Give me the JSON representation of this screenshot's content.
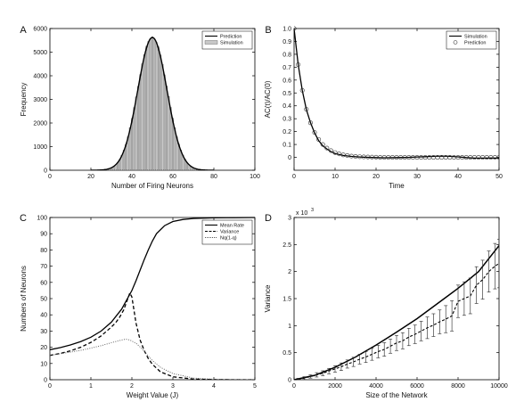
{
  "chart_data": [
    {
      "panel_label": "A",
      "type": "bar",
      "xlabel": "Number of Firing Neurons",
      "ylabel": "Frequency",
      "xlim": [
        0,
        100
      ],
      "ylim": [
        0,
        6000
      ],
      "xticks": [
        0,
        20,
        40,
        60,
        80,
        100
      ],
      "yticks": [
        0,
        1000,
        2000,
        3000,
        4000,
        5000,
        6000
      ],
      "legend": {
        "position": "top-right",
        "entries": [
          "Prediction",
          "Simulation"
        ]
      },
      "series": [
        {
          "name": "Prediction",
          "kind": "line",
          "mean": 50,
          "std": 7.1,
          "peak": 5620
        },
        {
          "name": "Simulation",
          "kind": "bar",
          "x": [
            28,
            29,
            30,
            31,
            32,
            33,
            34,
            35,
            36,
            37,
            38,
            39,
            40,
            41,
            42,
            43,
            44,
            45,
            46,
            47,
            48,
            49,
            50,
            51,
            52,
            53,
            54,
            55,
            56,
            57,
            58,
            59,
            60,
            61,
            62,
            63,
            64,
            65,
            66,
            67,
            68,
            69,
            70,
            71,
            72
          ],
          "values": [
            40,
            60,
            100,
            150,
            220,
            320,
            450,
            630,
            850,
            1100,
            1420,
            1800,
            2200,
            2650,
            3100,
            3550,
            4050,
            4500,
            4900,
            5250,
            5450,
            5580,
            5650,
            5560,
            5430,
            5230,
            4880,
            4480,
            4040,
            3570,
            3120,
            2660,
            2210,
            1800,
            1420,
            1110,
            850,
            640,
            460,
            320,
            220,
            150,
            100,
            60,
            40
          ]
        }
      ]
    },
    {
      "panel_label": "B",
      "type": "line",
      "xlabel": "Time",
      "ylabel": "AC(t)/AC(0)",
      "xlim": [
        0,
        50
      ],
      "ylim": [
        -0.1,
        1.0
      ],
      "xticks": [
        0,
        10,
        20,
        30,
        40,
        50
      ],
      "yticks": [
        0,
        0.1,
        0.2,
        0.3,
        0.4,
        0.5,
        0.6,
        0.7,
        0.8,
        0.9,
        1.0
      ],
      "ytick_labels": [
        "0",
        "0.1",
        "0.2",
        "0.3",
        "0.4",
        "0.5",
        "0.6",
        "0.7",
        "0.8",
        "0.9",
        "1.0"
      ],
      "legend": {
        "position": "top-right",
        "entries": [
          "Simulation",
          "Prediction"
        ]
      },
      "series": [
        {
          "name": "Simulation",
          "style": "solid",
          "x": [
            0,
            1,
            2,
            3,
            4,
            5,
            6,
            7,
            8,
            9,
            10,
            12,
            14,
            16,
            18,
            20,
            22,
            25,
            28,
            30,
            32,
            34,
            36,
            38,
            40,
            42,
            44,
            46,
            48,
            50
          ],
          "y": [
            1.0,
            0.72,
            0.52,
            0.37,
            0.27,
            0.19,
            0.13,
            0.09,
            0.065,
            0.045,
            0.03,
            0.015,
            0.007,
            0.003,
            0.0,
            -0.002,
            -0.003,
            -0.002,
            0.0,
            0.003,
            0.005,
            0.008,
            0.01,
            0.008,
            0.004,
            -0.002,
            -0.006,
            -0.006,
            -0.005,
            -0.006
          ]
        },
        {
          "name": "Prediction",
          "style": "circles",
          "x": [
            0,
            1,
            2,
            3,
            4,
            5,
            6,
            7,
            8,
            9,
            10,
            11,
            12,
            13,
            14,
            15,
            16,
            17,
            18,
            19,
            20,
            21,
            22,
            23,
            24,
            25,
            26,
            27,
            28,
            29,
            30,
            31,
            32,
            33,
            34,
            35,
            36,
            37,
            38,
            39,
            40,
            41,
            42,
            43,
            44,
            45,
            46,
            47,
            48,
            49,
            50
          ],
          "y": [
            1.0,
            0.72,
            0.52,
            0.373,
            0.268,
            0.193,
            0.139,
            0.1,
            0.072,
            0.052,
            0.037,
            0.027,
            0.019,
            0.014,
            0.01,
            0.007,
            0.005,
            0.004,
            0.003,
            0.002,
            0.001,
            0,
            0,
            0,
            0,
            0,
            0,
            0,
            0,
            0,
            0,
            0,
            0,
            0,
            0,
            0,
            0,
            0,
            0,
            0,
            0,
            0,
            0,
            0,
            0,
            0,
            0,
            0,
            0,
            0,
            0
          ]
        }
      ]
    },
    {
      "panel_label": "C",
      "type": "line",
      "xlabel": "Weight Value (J)",
      "ylabel": "Numbers of Neurons",
      "xlim": [
        0,
        5
      ],
      "ylim": [
        0,
        100
      ],
      "xticks": [
        0,
        1,
        2,
        3,
        4,
        5
      ],
      "yticks": [
        0,
        10,
        20,
        30,
        40,
        50,
        60,
        70,
        80,
        90,
        100
      ],
      "legend": {
        "position": "top-right",
        "entries": [
          "Mean Rate",
          "Variance",
          "Nq(1-q)"
        ]
      },
      "series": [
        {
          "name": "Mean Rate",
          "style": "solid",
          "x": [
            0,
            0.25,
            0.5,
            0.75,
            1.0,
            1.25,
            1.5,
            1.75,
            2.0,
            2.1,
            2.2,
            2.3,
            2.4,
            2.5,
            2.6,
            2.8,
            3.0,
            3.25,
            3.5,
            4.0,
            4.5,
            5.0
          ],
          "y": [
            18.5,
            19.8,
            21.4,
            23.5,
            26.2,
            30.0,
            35.5,
            43.5,
            55.0,
            61.0,
            67.5,
            74.0,
            80.0,
            85.5,
            90.0,
            95.0,
            97.5,
            98.8,
            99.4,
            99.8,
            99.9,
            100.0
          ]
        },
        {
          "name": "Variance",
          "style": "dashed",
          "x": [
            0,
            0.25,
            0.5,
            0.75,
            1.0,
            1.25,
            1.5,
            1.6,
            1.7,
            1.8,
            1.9,
            1.95,
            2.0,
            2.05,
            2.1,
            2.2,
            2.3,
            2.4,
            2.5,
            2.7,
            3.0,
            3.5,
            4.0,
            4.5,
            5.0
          ],
          "y": [
            15.0,
            16.2,
            17.8,
            20.0,
            23.0,
            27.0,
            32.5,
            35.0,
            38.5,
            43.0,
            50.0,
            53.5,
            51.0,
            43.0,
            35.0,
            24.5,
            18.0,
            13.0,
            9.5,
            4.8,
            1.8,
            0.4,
            0.1,
            0.0,
            0.0
          ]
        },
        {
          "name": "Nq(1-q)",
          "style": "dotted",
          "x": [
            0,
            0.25,
            0.5,
            0.75,
            1.0,
            1.25,
            1.5,
            1.75,
            1.85,
            1.95,
            2.1,
            2.2,
            2.3,
            2.4,
            2.5,
            2.7,
            3.0,
            3.5,
            4.0,
            4.5,
            5.0
          ],
          "y": [
            15.0,
            16.0,
            17.0,
            18.1,
            19.5,
            21.0,
            22.8,
            24.5,
            25.0,
            24.5,
            22.5,
            20.2,
            17.5,
            14.6,
            11.8,
            7.6,
            3.8,
            1.0,
            0.3,
            0.1,
            0.0
          ]
        }
      ]
    },
    {
      "panel_label": "D",
      "type": "line",
      "xlabel": "Size of the Network",
      "ylabel": "Variance",
      "y_multiplier": "x 10",
      "y_multiplier_exp": "3",
      "xlim": [
        0,
        10000
      ],
      "ylim": [
        0,
        3000
      ],
      "xticks": [
        0,
        2000,
        4000,
        6000,
        8000,
        10000
      ],
      "yticks": [
        0,
        500,
        1000,
        1500,
        2000,
        2500,
        3000
      ],
      "ytick_labels": [
        "0",
        "0.5",
        "1",
        "1.5",
        "2",
        "2.5",
        "3"
      ],
      "series": [
        {
          "name": "",
          "style": "solid",
          "x": [
            0,
            1000,
            2000,
            3000,
            4000,
            5000,
            6000,
            7000,
            8000,
            9000,
            10000
          ],
          "y": [
            0,
            80,
            230,
            420,
            640,
            880,
            1130,
            1410,
            1690,
            2000,
            2480
          ]
        },
        {
          "name": "",
          "style": "dashed-errorbars",
          "x": [
            200,
            500,
            800,
            1100,
            1400,
            1700,
            2000,
            2300,
            2600,
            2900,
            3200,
            3500,
            3800,
            4100,
            4400,
            4700,
            5000,
            5300,
            5600,
            5900,
            6200,
            6500,
            6800,
            7100,
            7400,
            7700,
            8000,
            8300,
            8600,
            8900,
            9200,
            9500,
            9800,
            10000
          ],
          "y": [
            10,
            30,
            60,
            90,
            120,
            160,
            200,
            240,
            290,
            330,
            380,
            420,
            470,
            520,
            560,
            620,
            680,
            720,
            790,
            840,
            900,
            960,
            1010,
            1070,
            1120,
            1180,
            1450,
            1500,
            1550,
            1750,
            1850,
            2000,
            2100,
            2150
          ],
          "err": [
            15,
            25,
            30,
            40,
            45,
            50,
            60,
            70,
            75,
            85,
            90,
            100,
            110,
            115,
            125,
            130,
            140,
            150,
            160,
            170,
            180,
            200,
            210,
            220,
            250,
            280,
            300,
            310,
            330,
            340,
            360,
            380,
            420,
            450
          ]
        }
      ]
    }
  ]
}
